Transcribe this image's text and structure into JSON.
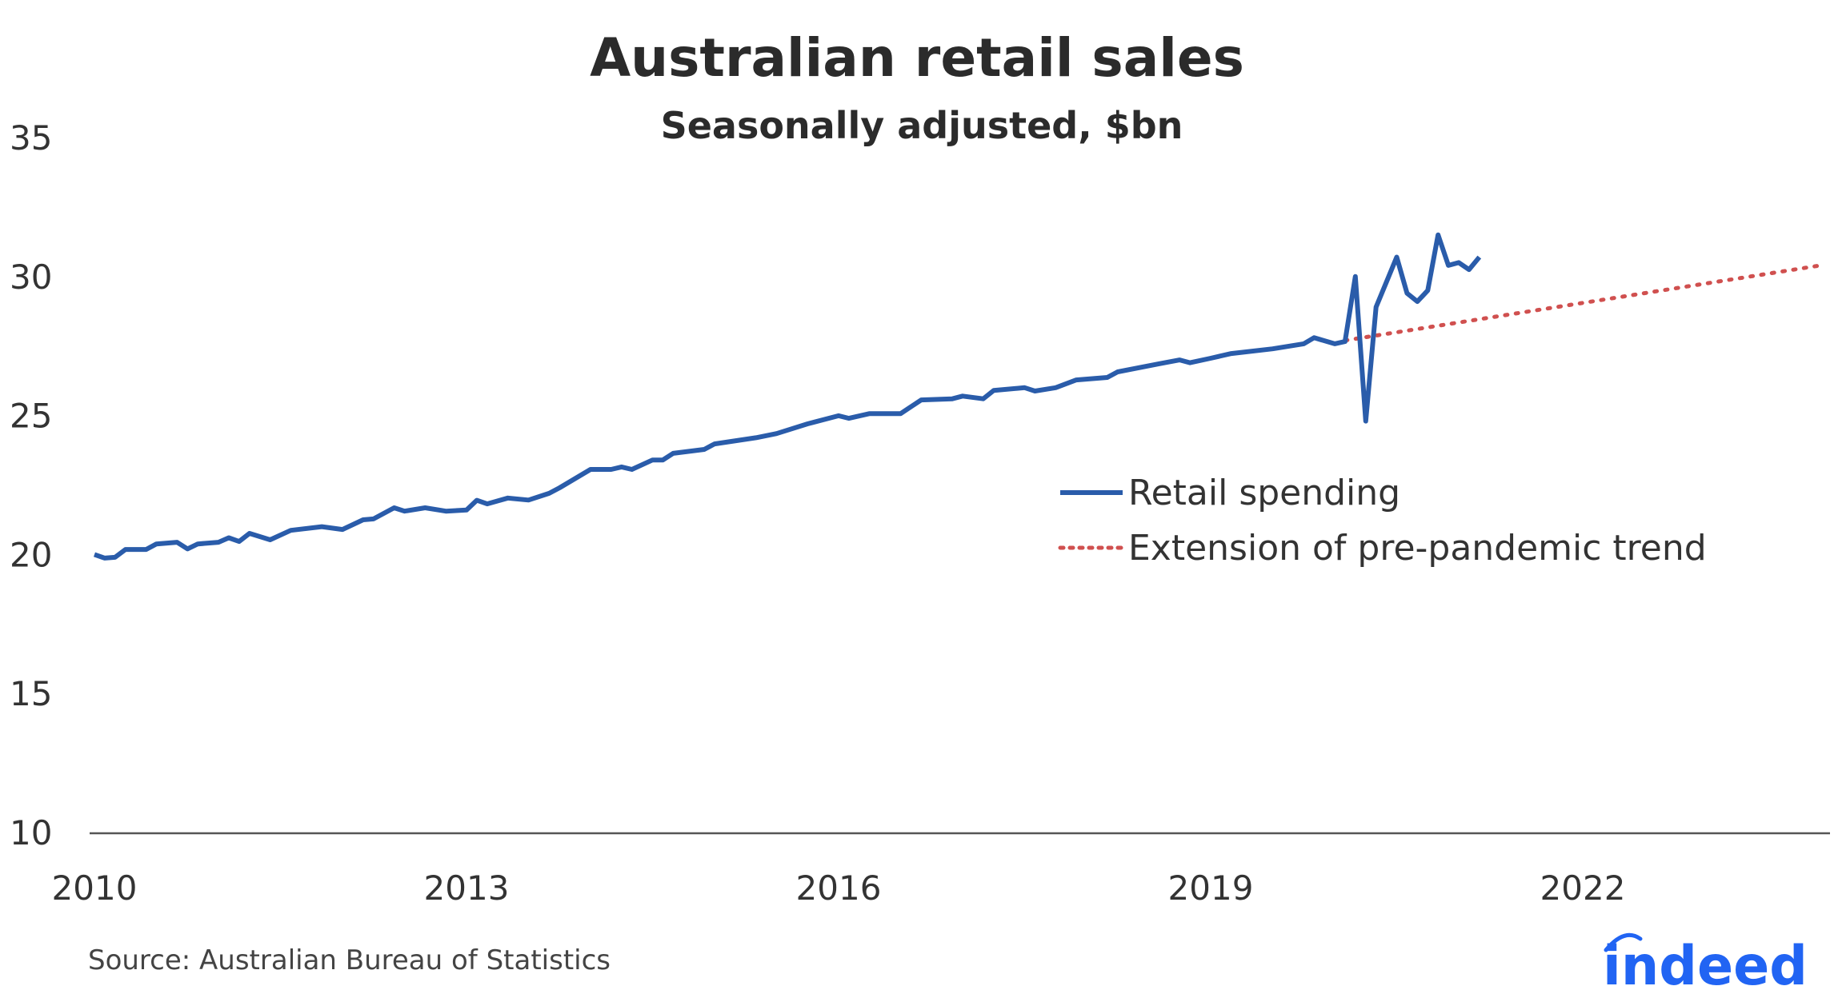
{
  "chart_data": {
    "type": "line",
    "title": "Australian retail sales",
    "subtitle": "Seasonally adjusted, $bn",
    "xlabel": "",
    "ylabel": "",
    "ylim": [
      10,
      35
    ],
    "xlim": [
      "2010-01",
      "2023-12"
    ],
    "yticks": [
      "10",
      "15",
      "20",
      "25",
      "30",
      "35"
    ],
    "xticks": [
      "2010",
      "2013",
      "2016",
      "2019",
      "2022"
    ],
    "grid": false,
    "legend_position": "center-right",
    "series": [
      {
        "name": "Retail spending",
        "color": "#2a5caa",
        "style": "solid",
        "points": [
          [
            "2010-01",
            20.0
          ],
          [
            "2010-02",
            19.87
          ],
          [
            "2010-03",
            19.9
          ],
          [
            "2010-04",
            20.18
          ],
          [
            "2010-06",
            20.18
          ],
          [
            "2010-07",
            20.38
          ],
          [
            "2010-09",
            20.44
          ],
          [
            "2010-10",
            20.2
          ],
          [
            "2010-11",
            20.38
          ],
          [
            "2011-01",
            20.44
          ],
          [
            "2011-02",
            20.6
          ],
          [
            "2011-03",
            20.47
          ],
          [
            "2011-04",
            20.76
          ],
          [
            "2011-06",
            20.53
          ],
          [
            "2011-08",
            20.87
          ],
          [
            "2011-11",
            21.0
          ],
          [
            "2012-01",
            20.9
          ],
          [
            "2012-03",
            21.25
          ],
          [
            "2012-04",
            21.28
          ],
          [
            "2012-06",
            21.68
          ],
          [
            "2012-07",
            21.56
          ],
          [
            "2012-09",
            21.68
          ],
          [
            "2012-11",
            21.56
          ],
          [
            "2013-01",
            21.6
          ],
          [
            "2013-02",
            21.95
          ],
          [
            "2013-03",
            21.82
          ],
          [
            "2013-05",
            22.03
          ],
          [
            "2013-07",
            21.96
          ],
          [
            "2013-09",
            22.2
          ],
          [
            "2013-10",
            22.4
          ],
          [
            "2014-01",
            23.06
          ],
          [
            "2014-03",
            23.06
          ],
          [
            "2014-04",
            23.15
          ],
          [
            "2014-05",
            23.06
          ],
          [
            "2014-07",
            23.4
          ],
          [
            "2014-08",
            23.4
          ],
          [
            "2014-09",
            23.64
          ],
          [
            "2014-12",
            23.78
          ],
          [
            "2015-01",
            23.98
          ],
          [
            "2015-05",
            24.2
          ],
          [
            "2015-07",
            24.35
          ],
          [
            "2015-10",
            24.7
          ],
          [
            "2016-01",
            24.99
          ],
          [
            "2016-02",
            24.9
          ],
          [
            "2016-04",
            25.07
          ],
          [
            "2016-07",
            25.07
          ],
          [
            "2016-09",
            25.56
          ],
          [
            "2016-12",
            25.6
          ],
          [
            "2017-01",
            25.7
          ],
          [
            "2017-03",
            25.6
          ],
          [
            "2017-04",
            25.9
          ],
          [
            "2017-07",
            26.0
          ],
          [
            "2017-08",
            25.88
          ],
          [
            "2017-10",
            26.0
          ],
          [
            "2017-12",
            26.28
          ],
          [
            "2018-03",
            26.37
          ],
          [
            "2018-04",
            26.57
          ],
          [
            "2018-08",
            26.86
          ],
          [
            "2018-10",
            27.0
          ],
          [
            "2018-11",
            26.9
          ],
          [
            "2019-01",
            27.06
          ],
          [
            "2019-03",
            27.23
          ],
          [
            "2019-07",
            27.4
          ],
          [
            "2019-10",
            27.58
          ],
          [
            "2019-11",
            27.8
          ],
          [
            "2020-01",
            27.58
          ],
          [
            "2020-02",
            27.66
          ],
          [
            "2020-03",
            30.0
          ],
          [
            "2020-04",
            24.8
          ],
          [
            "2020-05",
            28.9
          ],
          [
            "2020-06",
            29.8
          ],
          [
            "2020-07",
            30.7
          ],
          [
            "2020-08",
            29.4
          ],
          [
            "2020-09",
            29.1
          ],
          [
            "2020-10",
            29.5
          ],
          [
            "2020-11",
            31.5
          ],
          [
            "2020-12",
            30.4
          ],
          [
            "2021-01",
            30.5
          ],
          [
            "2021-02",
            30.25
          ],
          [
            "2021-03",
            30.7
          ]
        ]
      },
      {
        "name": "Extension of pre-pandemic trend",
        "color": "#d0504f",
        "style": "dotted",
        "points": [
          [
            "2020-02",
            27.7
          ],
          [
            "2023-12",
            30.4
          ]
        ]
      }
    ]
  },
  "source": "Source: Australian Bureau of Statistics",
  "logo": "indeed"
}
